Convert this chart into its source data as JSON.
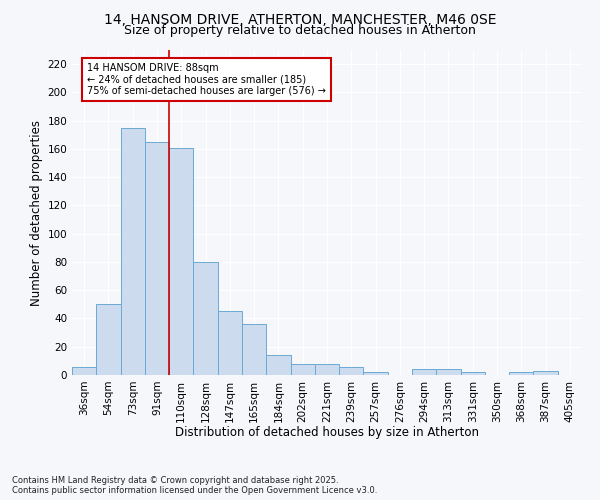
{
  "title_line1": "14, HANSOM DRIVE, ATHERTON, MANCHESTER, M46 0SE",
  "title_line2": "Size of property relative to detached houses in Atherton",
  "xlabel": "Distribution of detached houses by size in Atherton",
  "ylabel": "Number of detached properties",
  "footer": "Contains HM Land Registry data © Crown copyright and database right 2025.\nContains public sector information licensed under the Open Government Licence v3.0.",
  "bins": [
    "36sqm",
    "54sqm",
    "73sqm",
    "91sqm",
    "110sqm",
    "128sqm",
    "147sqm",
    "165sqm",
    "184sqm",
    "202sqm",
    "221sqm",
    "239sqm",
    "257sqm",
    "276sqm",
    "294sqm",
    "313sqm",
    "331sqm",
    "350sqm",
    "368sqm",
    "387sqm",
    "405sqm"
  ],
  "values": [
    6,
    50,
    175,
    165,
    161,
    80,
    45,
    36,
    14,
    8,
    8,
    6,
    2,
    0,
    4,
    4,
    2,
    0,
    2,
    3,
    0
  ],
  "bar_color": "#ccdcee",
  "bar_edge_color": "#6aaad4",
  "vline_x": 3.5,
  "vline_color": "#cc0000",
  "annotation_text": "14 HANSOM DRIVE: 88sqm\n← 24% of detached houses are smaller (185)\n75% of semi-detached houses are larger (576) →",
  "annotation_box_color": "#ffffff",
  "annotation_box_edge": "#cc0000",
  "ylim": [
    0,
    230
  ],
  "yticks": [
    0,
    20,
    40,
    60,
    80,
    100,
    120,
    140,
    160,
    180,
    200,
    220
  ],
  "fig_background": "#f5f7fb",
  "plot_background": "#f5f7fb",
  "grid_color": "#ffffff",
  "title_fontsize": 10,
  "subtitle_fontsize": 9,
  "axis_label_fontsize": 8.5,
  "tick_fontsize": 7.5,
  "annotation_fontsize": 7,
  "footer_fontsize": 6
}
